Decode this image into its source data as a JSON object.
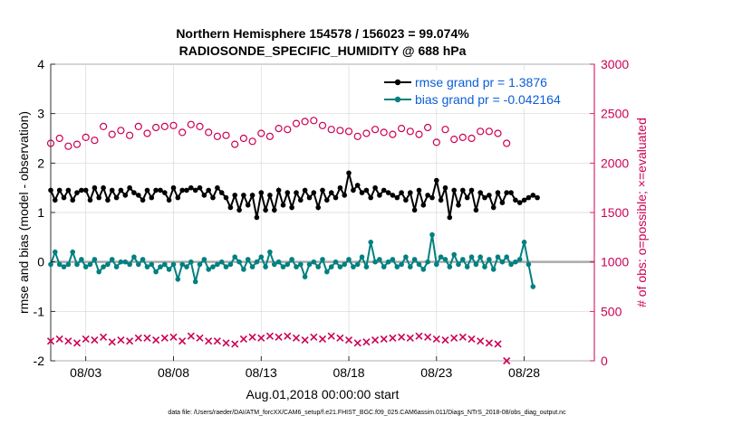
{
  "chart_data": {
    "type": "line",
    "title": "Northern Hemisphere 154578 / 156023 = 99.074%",
    "subtitle": "RADIOSONDE_SPECIFIC_HUMIDITY @ 688 hPa",
    "xlabel": "Aug.01,2018 00:00:00 start",
    "ylabel_left": "rmse and bias (model - observation)",
    "ylabel_right": "# of obs: o=possible; ×=evaluated",
    "footer": "data file: /Users/raeder/DAI/ATM_forcXX/CAM6_setup/f.e21.FHIST_BGC.f09_025.CAM6assim.011/Diags_NTrS_2018-08/obs_diag_output.nc",
    "x_ticks": [
      {
        "day": 3,
        "label": "08/03"
      },
      {
        "day": 8,
        "label": "08/08"
      },
      {
        "day": 13,
        "label": "08/13"
      },
      {
        "day": 18,
        "label": "08/18"
      },
      {
        "day": 23,
        "label": "08/23"
      },
      {
        "day": 28,
        "label": "08/28"
      }
    ],
    "xlim": [
      1.0,
      32.0
    ],
    "ylim_left": [
      -2,
      4
    ],
    "left_ticks": [
      "-2",
      "-1",
      "0",
      "1",
      "2",
      "3",
      "4"
    ],
    "ylim_right": [
      0,
      3000
    ],
    "right_ticks": [
      "0",
      "500",
      "1000",
      "1500",
      "2000",
      "2500",
      "3000"
    ],
    "zero_line": 0,
    "colors": {
      "rmse": "#000000",
      "bias": "#008080",
      "obs": "#cc0055",
      "zero": "#aaaaaa",
      "legend_text": "#0b5ed7"
    },
    "legend": [
      {
        "label": "rmse grand pr = 1.3876",
        "series": "rmse"
      },
      {
        "label": "bias grand pr = -0.042164",
        "series": "bias"
      }
    ],
    "series": [
      {
        "name": "rmse",
        "axis": "left",
        "x_start": 1.0,
        "x_step": 0.25,
        "values": [
          1.45,
          1.25,
          1.45,
          1.3,
          1.45,
          1.25,
          1.4,
          1.45,
          1.45,
          1.25,
          1.5,
          1.3,
          1.5,
          1.25,
          1.45,
          1.3,
          1.45,
          1.35,
          1.5,
          1.4,
          1.35,
          1.25,
          1.45,
          1.3,
          1.45,
          1.45,
          1.4,
          1.25,
          1.5,
          1.3,
          1.45,
          1.45,
          1.5,
          1.45,
          1.5,
          1.35,
          1.45,
          1.3,
          1.5,
          1.4,
          1.3,
          1.1,
          1.35,
          1.05,
          1.35,
          1.15,
          1.35,
          0.9,
          1.4,
          1.05,
          1.35,
          1.05,
          1.45,
          1.15,
          1.4,
          1.1,
          1.4,
          1.25,
          1.45,
          1.3,
          1.4,
          1.1,
          1.45,
          1.25,
          1.4,
          1.3,
          1.5,
          1.35,
          1.8,
          1.45,
          1.55,
          1.4,
          1.45,
          1.3,
          1.5,
          1.35,
          1.45,
          1.4,
          1.35,
          1.3,
          1.4,
          1.25,
          1.4,
          1.05,
          1.45,
          1.15,
          1.35,
          1.3,
          1.65,
          1.25,
          1.5,
          0.9,
          1.45,
          1.15,
          1.45,
          1.3,
          1.45,
          1.05,
          1.4,
          1.3,
          1.35,
          1.1,
          1.4,
          1.2,
          1.4,
          1.4,
          1.25,
          1.2,
          1.25,
          1.3,
          1.35,
          1.3
        ]
      },
      {
        "name": "bias",
        "axis": "left",
        "x_start": 1.0,
        "x_step": 0.25,
        "values": [
          -0.05,
          0.2,
          -0.05,
          -0.1,
          -0.05,
          0.2,
          -0.05,
          0.05,
          -0.1,
          -0.05,
          0.05,
          -0.2,
          -0.1,
          -0.05,
          0.05,
          -0.1,
          0.0,
          0.0,
          -0.05,
          0.1,
          -0.05,
          0.05,
          -0.1,
          -0.05,
          -0.2,
          -0.1,
          -0.05,
          -0.15,
          -0.05,
          -0.35,
          -0.05,
          -0.1,
          0.0,
          -0.4,
          -0.05,
          0.05,
          -0.15,
          -0.1,
          -0.05,
          0.0,
          -0.1,
          -0.05,
          0.1,
          0.0,
          -0.15,
          0.05,
          -0.1,
          0.0,
          0.1,
          -0.1,
          0.2,
          -0.05,
          0.0,
          -0.1,
          -0.05,
          0.05,
          -0.1,
          -0.05,
          -0.3,
          -0.05,
          0.0,
          -0.1,
          0.05,
          -0.2,
          -0.1,
          0.0,
          -0.1,
          -0.05,
          0.05,
          -0.1,
          -0.05,
          0.1,
          -0.1,
          0.4,
          0.0,
          0.05,
          -0.1,
          0.0,
          0.05,
          -0.1,
          -0.05,
          0.1,
          -0.1,
          0.05,
          -0.05,
          -0.15,
          0.0,
          0.55,
          -0.05,
          0.1,
          0.05,
          -0.1,
          0.15,
          -0.05,
          0.05,
          -0.1,
          0.1,
          -0.05,
          0.1,
          -0.1,
          0.05,
          -0.15,
          0.1,
          0.0,
          0.1,
          -0.05,
          0.0,
          0.05,
          0.4,
          -0.05,
          -0.5
        ]
      },
      {
        "name": "obs_possible",
        "axis": "right",
        "x_start": 1.0,
        "x_step": 0.5,
        "values": [
          2200,
          2250,
          2170,
          2190,
          2260,
          2230,
          2370,
          2290,
          2330,
          2280,
          2370,
          2300,
          2360,
          2370,
          2380,
          2310,
          2390,
          2370,
          2310,
          2270,
          2280,
          2190,
          2250,
          2220,
          2300,
          2270,
          2350,
          2340,
          2400,
          2420,
          2430,
          2380,
          2340,
          2330,
          2320,
          2270,
          2300,
          2340,
          2310,
          2290,
          2350,
          2320,
          2290,
          2360,
          2210,
          2340,
          2240,
          2260,
          2250,
          2320,
          2320,
          2300,
          2200
        ]
      },
      {
        "name": "obs_evaluated",
        "axis": "right",
        "x_start": 1.0,
        "x_step": 0.5,
        "values": [
          200,
          220,
          200,
          180,
          220,
          210,
          240,
          190,
          210,
          200,
          230,
          230,
          210,
          230,
          240,
          200,
          250,
          230,
          200,
          200,
          180,
          170,
          220,
          240,
          230,
          250,
          240,
          250,
          230,
          210,
          240,
          220,
          250,
          230,
          210,
          180,
          190,
          210,
          220,
          230,
          240,
          230,
          250,
          240,
          220,
          210,
          230,
          240,
          220,
          200,
          180,
          170,
          0
        ]
      }
    ]
  }
}
